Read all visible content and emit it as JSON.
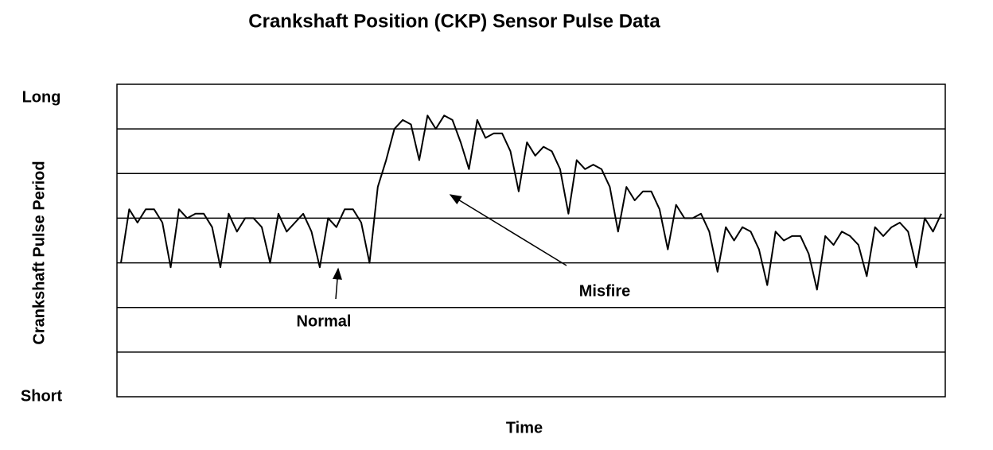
{
  "chart_data": {
    "type": "line",
    "title": "Crankshaft Position (CKP) Sensor Pulse Data",
    "x_label": "Time",
    "y_label": "Crankshaft Pulse Period",
    "ylim": [
      0,
      7
    ],
    "yticks": [
      {
        "value": 0,
        "label": "Short"
      },
      {
        "value": 7,
        "label": "Long"
      }
    ],
    "ygrid": [
      1,
      2,
      3,
      4,
      5,
      6
    ],
    "color": "#000000",
    "annotations": [
      "Normal",
      "Misfire"
    ],
    "values": [
      3.0,
      4.2,
      3.9,
      4.2,
      4.2,
      3.9,
      2.9,
      4.2,
      4.0,
      4.1,
      4.1,
      3.8,
      2.9,
      4.1,
      3.7,
      4.0,
      4.0,
      3.8,
      3.0,
      4.1,
      3.7,
      3.9,
      4.1,
      3.7,
      2.9,
      4.0,
      3.8,
      4.2,
      4.2,
      3.9,
      3.0,
      4.7,
      5.3,
      6.0,
      6.2,
      6.1,
      5.3,
      6.3,
      6.0,
      6.3,
      6.2,
      5.7,
      5.1,
      6.2,
      5.8,
      5.9,
      5.9,
      5.5,
      4.6,
      5.7,
      5.4,
      5.6,
      5.5,
      5.1,
      4.1,
      5.3,
      5.1,
      5.2,
      5.1,
      4.7,
      3.7,
      4.7,
      4.4,
      4.6,
      4.6,
      4.2,
      3.3,
      4.3,
      4.0,
      4.0,
      4.1,
      3.7,
      2.8,
      3.8,
      3.5,
      3.8,
      3.7,
      3.3,
      2.5,
      3.7,
      3.5,
      3.6,
      3.6,
      3.2,
      2.4,
      3.6,
      3.4,
      3.7,
      3.6,
      3.4,
      2.7,
      3.8,
      3.6,
      3.8,
      3.9,
      3.7,
      2.9,
      4.0,
      3.7,
      4.1
    ]
  }
}
